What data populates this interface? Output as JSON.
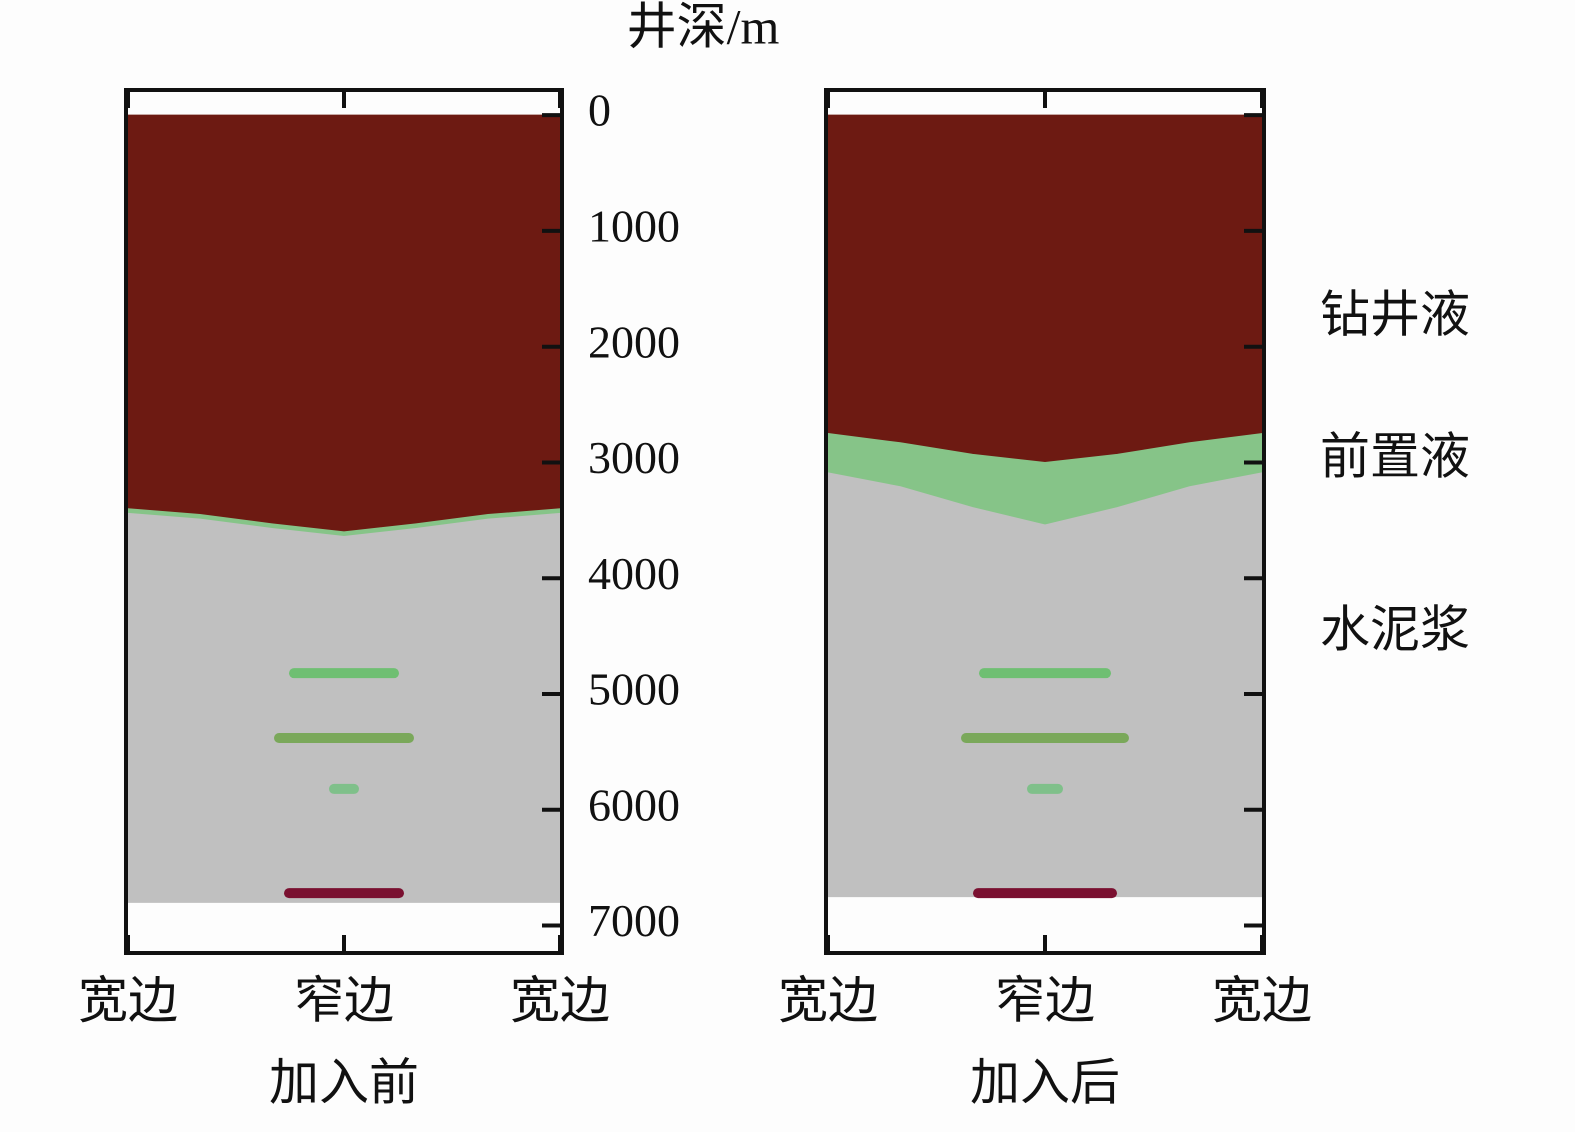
{
  "chart_data": {
    "type": "area",
    "ylabel": "井深/m",
    "ylim": [
      7220,
      -200
    ],
    "yticks": [
      0,
      1000,
      2000,
      3000,
      4000,
      5000,
      6000,
      7000
    ],
    "categories": [
      "宽边",
      null,
      null,
      "窄边",
      null,
      null,
      "宽边"
    ],
    "series": [
      {
        "name": "钻井液",
        "color": "#6d1a12"
      },
      {
        "name": "前置液",
        "color": "#86c488"
      },
      {
        "name": "水泥浆",
        "color": "#c0c0c0"
      }
    ],
    "panels": [
      {
        "title": "加入前",
        "values": [
          [
            3400,
            3450,
            3530,
            3600,
            3530,
            3450,
            3400
          ],
          [
            40,
            40,
            40,
            40,
            40,
            40,
            40
          ],
          [
            3360,
            3310,
            3230,
            3160,
            3230,
            3310,
            3360
          ]
        ]
      },
      {
        "title": "加入后",
        "values": [
          [
            2750,
            2830,
            2930,
            3000,
            2930,
            2830,
            2750
          ],
          [
            340,
            380,
            460,
            540,
            460,
            380,
            340
          ],
          [
            3660,
            3540,
            3360,
            3210,
            3360,
            3540,
            3660
          ]
        ]
      }
    ]
  }
}
